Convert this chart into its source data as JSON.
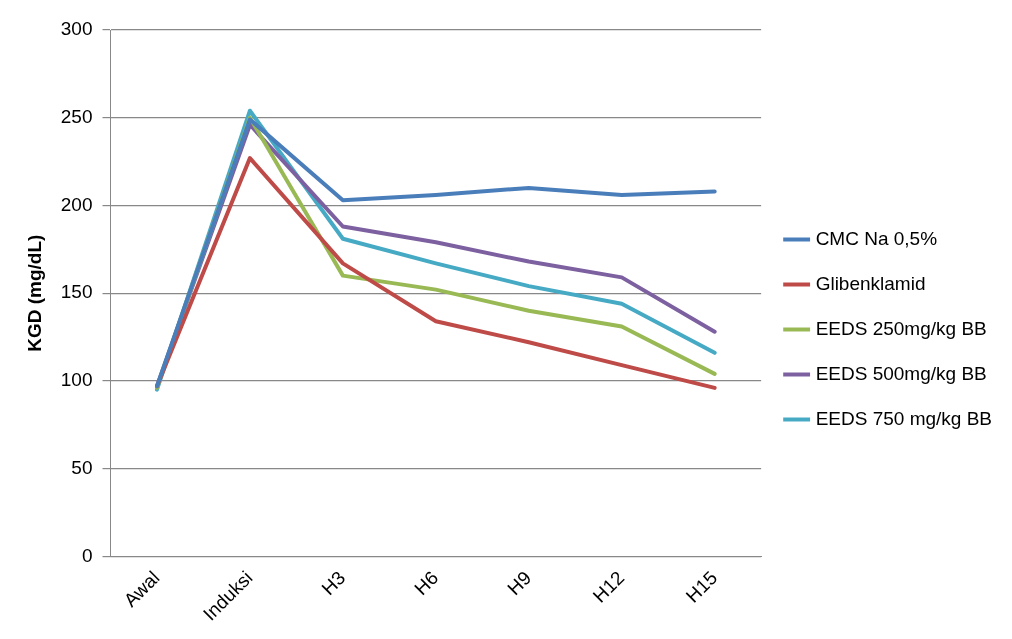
{
  "chart_data": {
    "type": "line",
    "ylabel": "KGD (mg/dL)",
    "categories": [
      "Awal",
      "Induksi",
      "H3",
      "H6",
      "H9",
      "H12",
      "H15"
    ],
    "series": [
      {
        "name": "CMC Na 0,5%",
        "color": "#4a7ebb",
        "values": [
          97,
          249,
          203,
          206,
          210,
          206,
          208
        ]
      },
      {
        "name": "Glibenklamid",
        "color": "#be4b48",
        "values": [
          97,
          227,
          167,
          134,
          122,
          109,
          96
        ]
      },
      {
        "name": "EEDS 250mg/kg BB",
        "color": "#98b954",
        "values": [
          96,
          250,
          160,
          152,
          140,
          131,
          104
        ]
      },
      {
        "name": "EEDS 500mg/kg BB",
        "color": "#7d60a0",
        "values": [
          97,
          246,
          188,
          179,
          168,
          159,
          128
        ]
      },
      {
        "name": "EEDS 750 mg/kg BB",
        "color": "#46aac5",
        "values": [
          95,
          254,
          181,
          167,
          154,
          144,
          116
        ]
      }
    ],
    "ylim": [
      0,
      300
    ],
    "yticks": [
      0,
      50,
      100,
      150,
      200,
      250,
      300
    ],
    "grid": "y",
    "legend": "right",
    "marker": "none",
    "line_style": "solid"
  }
}
